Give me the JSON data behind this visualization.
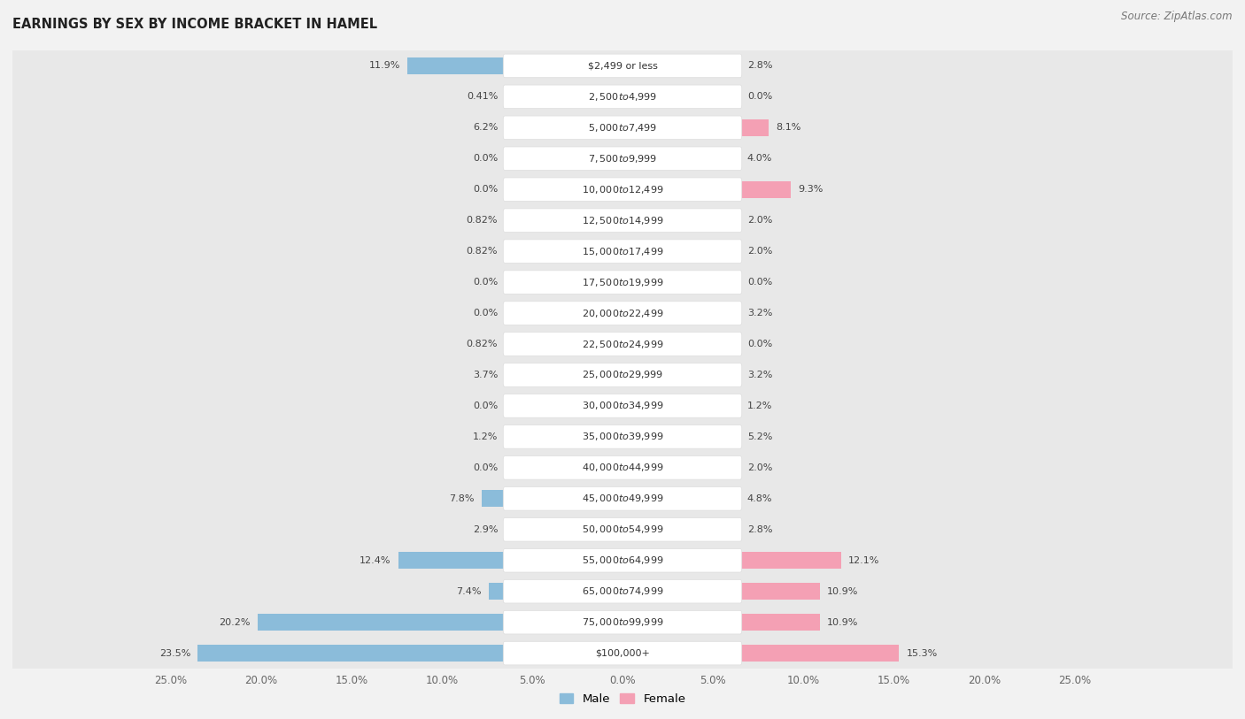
{
  "title": "EARNINGS BY SEX BY INCOME BRACKET IN HAMEL",
  "source": "Source: ZipAtlas.com",
  "categories": [
    "$2,499 or less",
    "$2,500 to $4,999",
    "$5,000 to $7,499",
    "$7,500 to $9,999",
    "$10,000 to $12,499",
    "$12,500 to $14,999",
    "$15,000 to $17,499",
    "$17,500 to $19,999",
    "$20,000 to $22,499",
    "$22,500 to $24,999",
    "$25,000 to $29,999",
    "$30,000 to $34,999",
    "$35,000 to $39,999",
    "$40,000 to $44,999",
    "$45,000 to $49,999",
    "$50,000 to $54,999",
    "$55,000 to $64,999",
    "$65,000 to $74,999",
    "$75,000 to $99,999",
    "$100,000+"
  ],
  "male_values": [
    11.9,
    0.41,
    6.2,
    0.0,
    0.0,
    0.82,
    0.82,
    0.0,
    0.0,
    0.82,
    3.7,
    0.0,
    1.2,
    0.0,
    7.8,
    2.9,
    12.4,
    7.4,
    20.2,
    23.5
  ],
  "female_values": [
    2.8,
    0.0,
    8.1,
    4.0,
    9.3,
    2.0,
    2.0,
    0.0,
    3.2,
    0.0,
    3.2,
    1.2,
    5.2,
    2.0,
    4.8,
    2.8,
    12.1,
    10.9,
    10.9,
    15.3
  ],
  "male_color": "#8bbcda",
  "female_color": "#f4a0b4",
  "row_bg_color": "#e8e8e8",
  "label_box_color": "#ffffff",
  "male_label": "Male",
  "female_label": "Female",
  "xlim": 25.0,
  "fig_bg_color": "#f2f2f2",
  "title_fontsize": 10.5,
  "source_fontsize": 8.5,
  "label_fontsize": 8.0,
  "val_fontsize": 8.0,
  "axis_fontsize": 8.5,
  "legend_fontsize": 9.5
}
